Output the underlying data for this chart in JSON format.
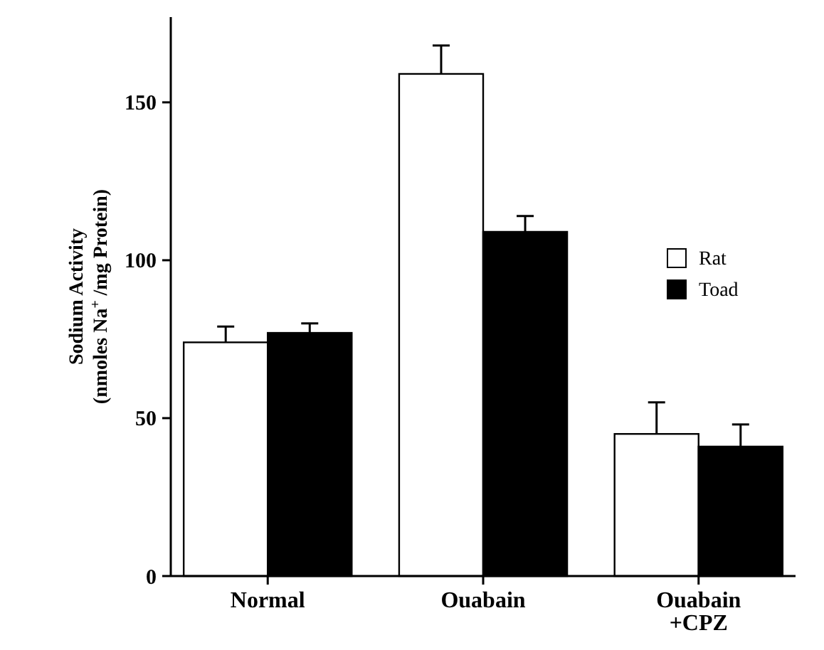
{
  "chart_data": {
    "type": "bar",
    "ylabel": "Sodium Activity\n(nmoles Na$^{+}$ /mg Protein)",
    "categories": [
      "Normal",
      "Ouabain",
      "Ouabain\n+CPZ"
    ],
    "series": [
      {
        "name": "Rat",
        "color": "#ffffff",
        "values": [
          74,
          159,
          45
        ],
        "errors": [
          [
            74,
            79
          ],
          [
            159,
            168
          ],
          [
            45,
            55
          ]
        ]
      },
      {
        "name": "Toad",
        "color": "#000000",
        "values": [
          77,
          109,
          41
        ],
        "errors": [
          [
            77,
            80
          ],
          [
            109,
            114
          ],
          [
            41,
            48
          ]
        ]
      }
    ],
    "ylim": [
      0,
      177
    ],
    "yticks": [
      0,
      50,
      100,
      150
    ],
    "grid": false,
    "legend": "right"
  }
}
